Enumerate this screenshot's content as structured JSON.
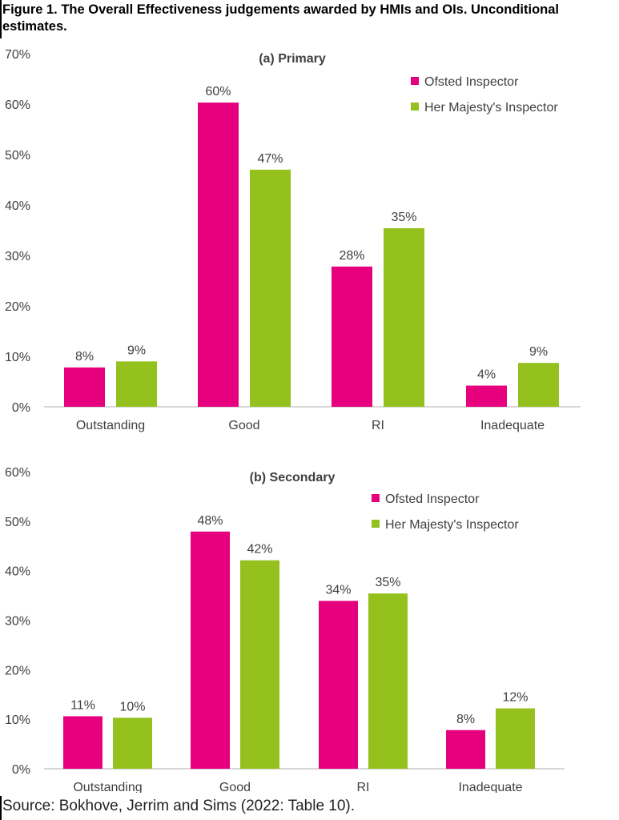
{
  "figure_title": "Figure 1. The Overall Effectiveness judgements awarded by HMIs and OIs. Unconditional estimates.",
  "source": "Source: Bokhove, Jerrim and Sims (2022: Table 10).",
  "colors": {
    "ofsted": "#e6007e",
    "hmi": "#95c11f",
    "axis": "#bfbfbf",
    "text": "#404040"
  },
  "chart_data": [
    {
      "type": "bar",
      "title": "(a) Primary",
      "categories": [
        "Outstanding",
        "Good",
        "RI",
        "Inadequate"
      ],
      "series": [
        {
          "name": "Ofsted Inspector",
          "values": [
            7.8,
            60.3,
            27.8,
            4.2
          ],
          "labels": [
            "8%",
            "60%",
            "28%",
            "4%"
          ]
        },
        {
          "name": "Her Majesty's Inspector",
          "values": [
            9.0,
            47.0,
            35.4,
            8.7
          ],
          "labels": [
            "9%",
            "47%",
            "35%",
            "9%"
          ]
        }
      ],
      "ylim": [
        0,
        70
      ],
      "yticks": [
        0,
        10,
        20,
        30,
        40,
        50,
        60,
        70
      ],
      "ytick_labels": [
        "0%",
        "10%",
        "20%",
        "30%",
        "40%",
        "50%",
        "60%",
        "70%"
      ],
      "xlabel": "",
      "ylabel": "",
      "grid": false,
      "legend": "top-right"
    },
    {
      "type": "bar",
      "title": "(b) Secondary",
      "categories": [
        "Outstanding",
        "Good",
        "RI",
        "Inadequate"
      ],
      "series": [
        {
          "name": "Ofsted Inspector",
          "values": [
            10.6,
            47.9,
            33.9,
            7.8
          ],
          "labels": [
            "11%",
            "48%",
            "34%",
            "8%"
          ]
        },
        {
          "name": "Her Majesty's Inspector",
          "values": [
            10.3,
            42.1,
            35.4,
            12.2
          ],
          "labels": [
            "10%",
            "42%",
            "35%",
            "12%"
          ]
        }
      ],
      "ylim": [
        0,
        60
      ],
      "yticks": [
        0,
        10,
        20,
        30,
        40,
        50,
        60
      ],
      "ytick_labels": [
        "0%",
        "10%",
        "20%",
        "30%",
        "40%",
        "50%",
        "60%"
      ],
      "xlabel": "",
      "ylabel": "",
      "grid": false,
      "legend": "top-right"
    }
  ]
}
